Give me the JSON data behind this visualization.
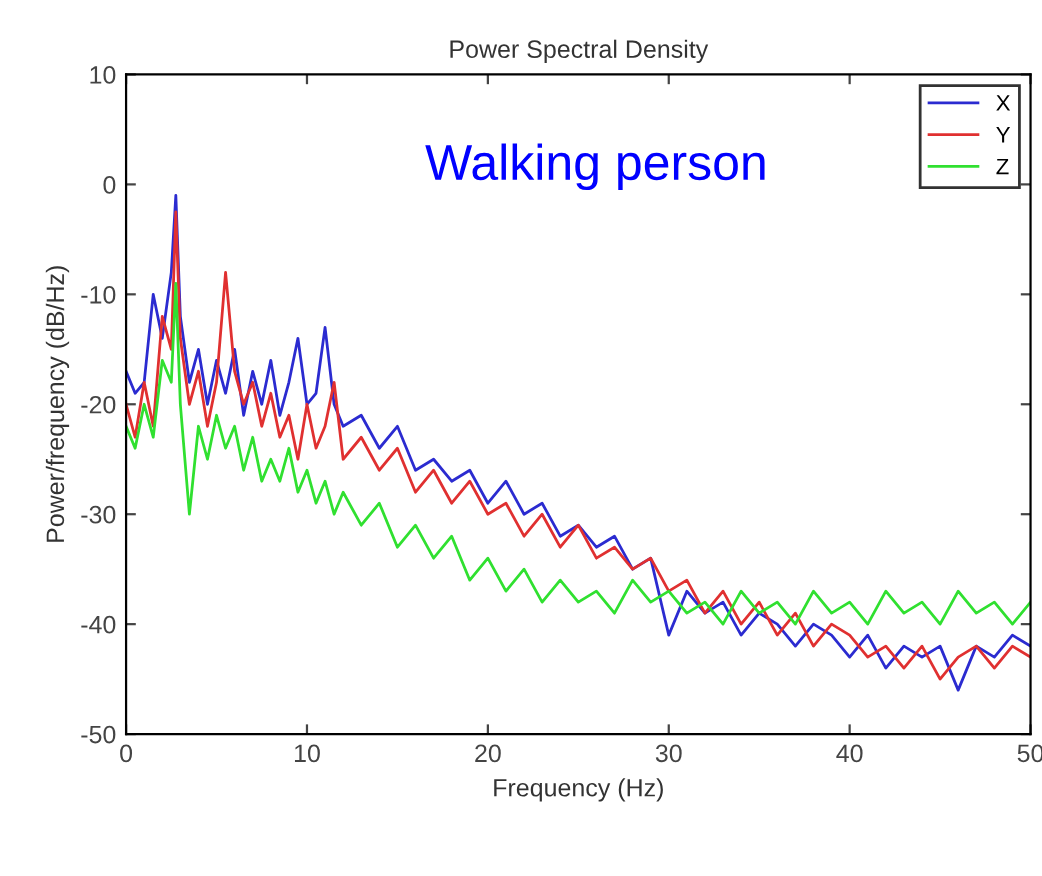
{
  "chart_data": {
    "type": "line",
    "title": "Power Spectral Density",
    "xlabel": "Frequency (Hz)",
    "ylabel": "Power/frequency (dB/Hz)",
    "annotations": [
      "Walking person"
    ],
    "x": [
      0,
      0.5,
      1,
      1.5,
      2,
      2.5,
      2.75,
      3,
      3.5,
      4,
      4.5,
      5,
      5.5,
      6,
      6.5,
      7,
      7.5,
      8,
      8.5,
      9,
      9.5,
      10,
      10.5,
      11,
      11.5,
      12,
      13,
      14,
      15,
      16,
      17,
      18,
      19,
      20,
      21,
      22,
      23,
      24,
      25,
      26,
      27,
      28,
      29,
      30,
      31,
      32,
      33,
      34,
      35,
      36,
      37,
      38,
      39,
      40,
      41,
      42,
      43,
      44,
      45,
      46,
      47,
      48,
      49,
      50
    ],
    "series": [
      {
        "name": "X",
        "color": "#2b2bd0",
        "values": [
          -17,
          -19,
          -18,
          -10,
          -14,
          -8,
          -1,
          -12,
          -18,
          -15,
          -20,
          -16,
          -19,
          -15,
          -21,
          -17,
          -20,
          -16,
          -21,
          -18,
          -14,
          -20,
          -19,
          -13,
          -20,
          -22,
          -21,
          -24,
          -22,
          -26,
          -25,
          -27,
          -26,
          -29,
          -27,
          -30,
          -29,
          -32,
          -31,
          -33,
          -32,
          -35,
          -34,
          -41,
          -37,
          -39,
          -38,
          -41,
          -39,
          -40,
          -42,
          -40,
          -41,
          -43,
          -41,
          -44,
          -42,
          -43,
          -42,
          -46,
          -42,
          -43,
          -41,
          -42
        ]
      },
      {
        "name": "Y",
        "color": "#e03030",
        "values": [
          -20,
          -23,
          -18,
          -22,
          -12,
          -15,
          -2.5,
          -14,
          -20,
          -17,
          -22,
          -18,
          -8,
          -17,
          -20,
          -18,
          -22,
          -19,
          -23,
          -21,
          -25,
          -20,
          -24,
          -22,
          -18,
          -25,
          -23,
          -26,
          -24,
          -28,
          -26,
          -29,
          -27,
          -30,
          -29,
          -32,
          -30,
          -33,
          -31,
          -34,
          -33,
          -35,
          -34,
          -37,
          -36,
          -39,
          -37,
          -40,
          -38,
          -41,
          -39,
          -42,
          -40,
          -41,
          -43,
          -42,
          -44,
          -42,
          -45,
          -43,
          -42,
          -44,
          -42,
          -43
        ]
      },
      {
        "name": "Z",
        "color": "#30e030",
        "values": [
          -22,
          -24,
          -20,
          -23,
          -16,
          -18,
          -9,
          -20,
          -30,
          -22,
          -25,
          -21,
          -24,
          -22,
          -26,
          -23,
          -27,
          -25,
          -27,
          -24,
          -28,
          -26,
          -29,
          -27,
          -30,
          -28,
          -31,
          -29,
          -33,
          -31,
          -34,
          -32,
          -36,
          -34,
          -37,
          -35,
          -38,
          -36,
          -38,
          -37,
          -39,
          -36,
          -38,
          -37,
          -39,
          -38,
          -40,
          -37,
          -39,
          -38,
          -40,
          -37,
          -39,
          -38,
          -40,
          -37,
          -39,
          -38,
          -40,
          -37,
          -39,
          -38,
          -40,
          -38
        ]
      }
    ],
    "xlim": [
      0,
      50
    ],
    "ylim": [
      -50,
      10
    ],
    "xticks": [
      0,
      10,
      20,
      30,
      40,
      50
    ],
    "yticks": [
      -50,
      -40,
      -30,
      -20,
      -10,
      0,
      10
    ],
    "grid": false,
    "legend": "top right",
    "marker": "none",
    "line_style": "solid"
  }
}
